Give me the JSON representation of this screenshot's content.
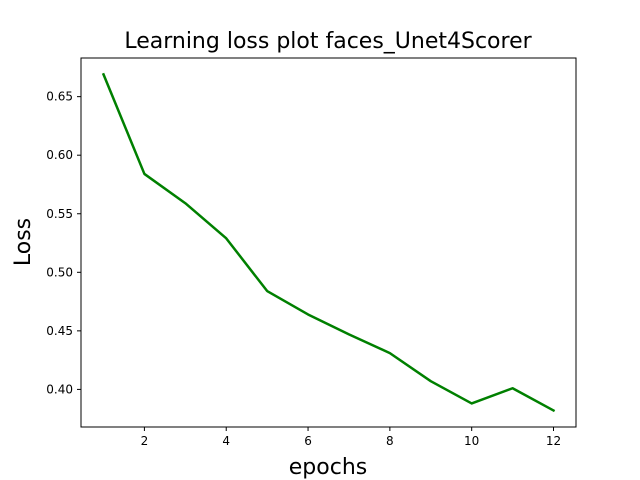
{
  "chart_data": {
    "type": "line",
    "title": "Learning loss plot faces_Unet4Scorer",
    "xlabel": "epochs",
    "ylabel": "Loss",
    "xlim": [
      0.45,
      12.55
    ],
    "ylim": [
      0.3679,
      0.683
    ],
    "xticks": [
      2,
      4,
      6,
      8,
      10,
      12
    ],
    "yticks": [
      0.4,
      0.45,
      0.5,
      0.55,
      0.6,
      0.65
    ],
    "xtick_labels": [
      "2",
      "4",
      "6",
      "8",
      "10",
      "12"
    ],
    "ytick_labels": [
      "0.40",
      "0.45",
      "0.50",
      "0.55",
      "0.60",
      "0.65"
    ],
    "grid": false,
    "series": [
      {
        "color": "#008000",
        "x": [
          1,
          2,
          3,
          4,
          5,
          6,
          7,
          8,
          9,
          10,
          11,
          12
        ],
        "y": [
          0.669,
          0.584,
          0.559,
          0.529,
          0.484,
          0.464,
          0.447,
          0.431,
          0.407,
          0.388,
          0.401,
          0.382
        ]
      }
    ]
  }
}
